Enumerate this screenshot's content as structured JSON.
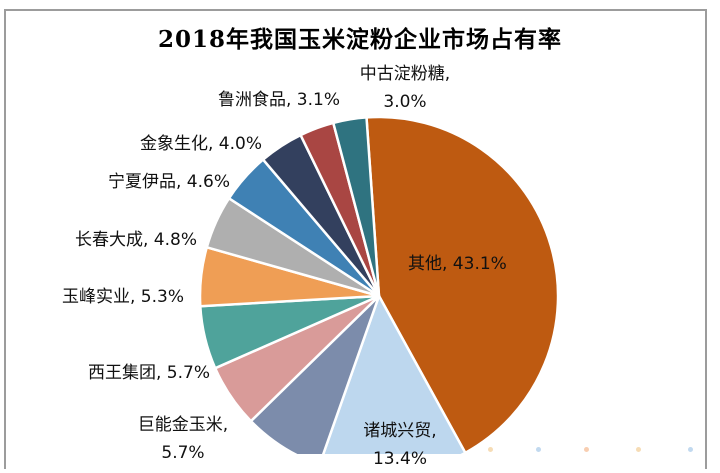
{
  "chart_data": {
    "type": "pie",
    "title": "2018年我国玉米淀粉企业市场占有率",
    "legend": "none",
    "label_style": "labels-outside-no-leader-lines",
    "start_angle_deg": -4,
    "segments": [
      {
        "id": "qita",
        "label": "其他",
        "value": 43.1,
        "color": "#BE5A11",
        "display": "其他, 43.1%"
      },
      {
        "id": "zhucheng-xingmao",
        "label": "诸城兴贸",
        "value": 13.4,
        "color": "#BDD7EE",
        "line1": "诸城兴贸,",
        "line2": "13.4%"
      },
      {
        "id": "unlabeled",
        "label": "",
        "value": 7.3,
        "color": "#7C8CAB"
      },
      {
        "id": "juneng-jinyumi",
        "label": "巨能金玉米",
        "value": 5.7,
        "color": "#D99B99",
        "line1": "巨能金玉米,",
        "line2": "5.7%"
      },
      {
        "id": "xiwang-jituan",
        "label": "西王集团",
        "value": 5.7,
        "color": "#4FA39B",
        "display": "西王集团, 5.7%"
      },
      {
        "id": "yufeng-shiye",
        "label": "玉峰实业",
        "value": 5.3,
        "color": "#EF9E55",
        "display": "玉峰实业, 5.3%"
      },
      {
        "id": "changchun-dacheng",
        "label": "长春大成",
        "value": 4.8,
        "color": "#AFAFAF",
        "display": "长春大成, 4.8%"
      },
      {
        "id": "ningxia-yipin",
        "label": "宁夏伊品",
        "value": 4.6,
        "color": "#3F81B4",
        "display": "宁夏伊品, 4.6%"
      },
      {
        "id": "jinxiang-shenghua",
        "label": "金象生化",
        "value": 4.0,
        "color": "#33405E",
        "display": "金象生化, 4.0%"
      },
      {
        "id": "luzhou-shipin",
        "label": "鲁洲食品",
        "value": 3.1,
        "color": "#A94643",
        "display": "鲁洲食品, 3.1%"
      },
      {
        "id": "zhonggu-dianfentang",
        "label": "中古淀粉糖",
        "value": 3.0,
        "color": "#2F7380",
        "line1": "中古淀粉糖,",
        "line2": "3.0%"
      }
    ]
  }
}
